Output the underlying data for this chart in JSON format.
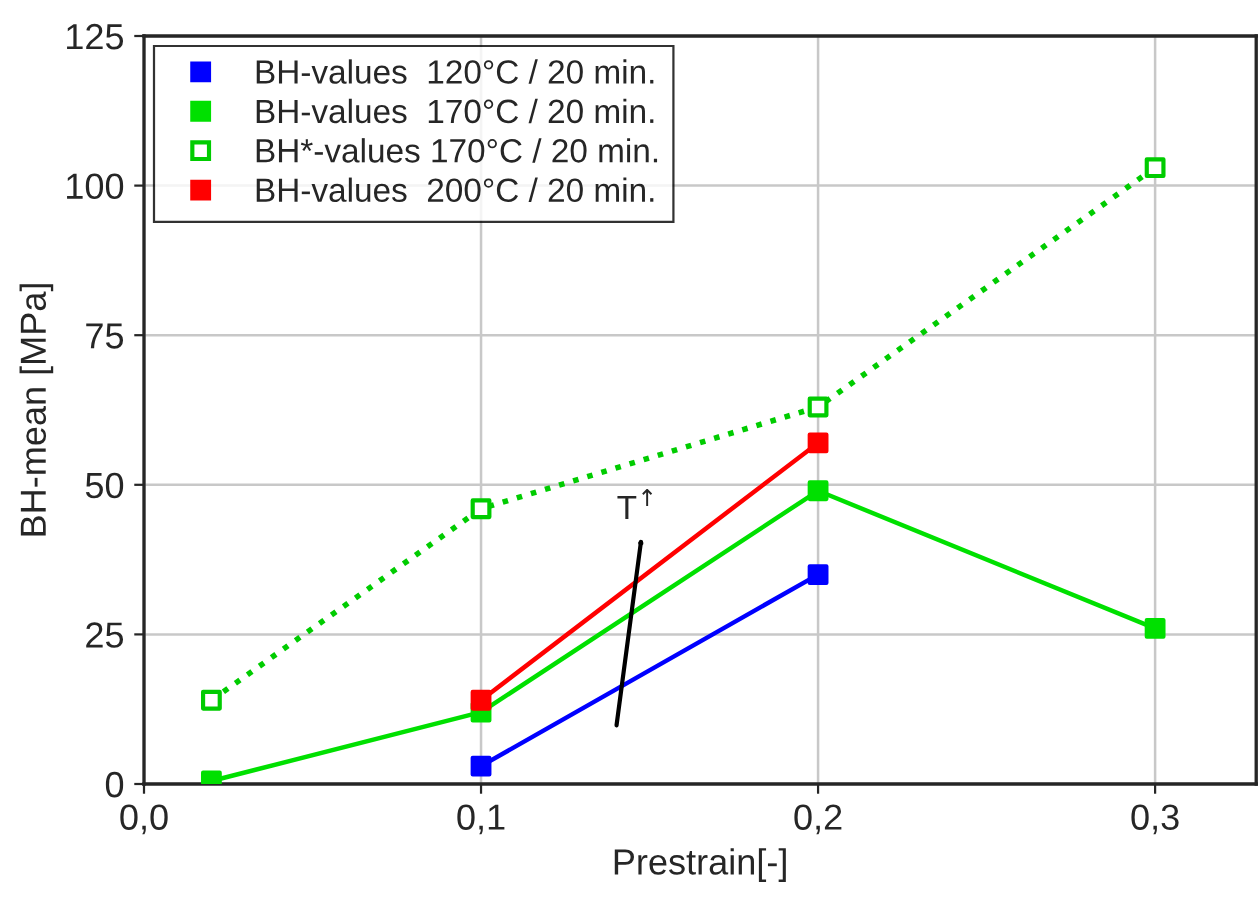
{
  "chart_data": {
    "type": "line",
    "xlabel": "Prestrain[-]",
    "ylabel": "BH-mean [MPa]",
    "xlim": [
      0,
      0.33
    ],
    "xticks": [
      {
        "value": 0,
        "label": "0,0"
      },
      {
        "value": 0.1,
        "label": "0,1"
      },
      {
        "value": 0.2,
        "label": "0,2"
      },
      {
        "value": 0.3,
        "label": "0,3"
      }
    ],
    "ylim": [
      0,
      125
    ],
    "yticks": [
      0,
      25,
      50,
      75,
      100,
      125
    ],
    "grid": true,
    "legend": "top left",
    "marker": "square",
    "series": [
      {
        "name": "BH-values  120°C / 20 min.",
        "color": "#0000ff",
        "x": [
          0.1,
          0.2
        ],
        "values": [
          3,
          35
        ],
        "line_style": "solid"
      },
      {
        "name": "BH-values  170°C / 20 min.",
        "color": "#00e000",
        "x": [
          0.02,
          0.1,
          0.2,
          0.3
        ],
        "values": [
          0.5,
          12,
          49,
          26
        ],
        "line_style": "solid"
      },
      {
        "name": "BH*-values 170°C / 20 min.",
        "color": "#00cc00",
        "x": [
          0.02,
          0.1,
          0.2,
          0.3
        ],
        "values": [
          14,
          46,
          63,
          103
        ],
        "line_style": "dotted"
      },
      {
        "name": "BH-values  200°C / 20 min.",
        "color": "#ff0000",
        "x": [
          0.1,
          0.2
        ],
        "values": [
          14,
          57
        ],
        "line_style": "solid"
      }
    ],
    "annotations": [
      "T$^{↑}$"
    ]
  }
}
